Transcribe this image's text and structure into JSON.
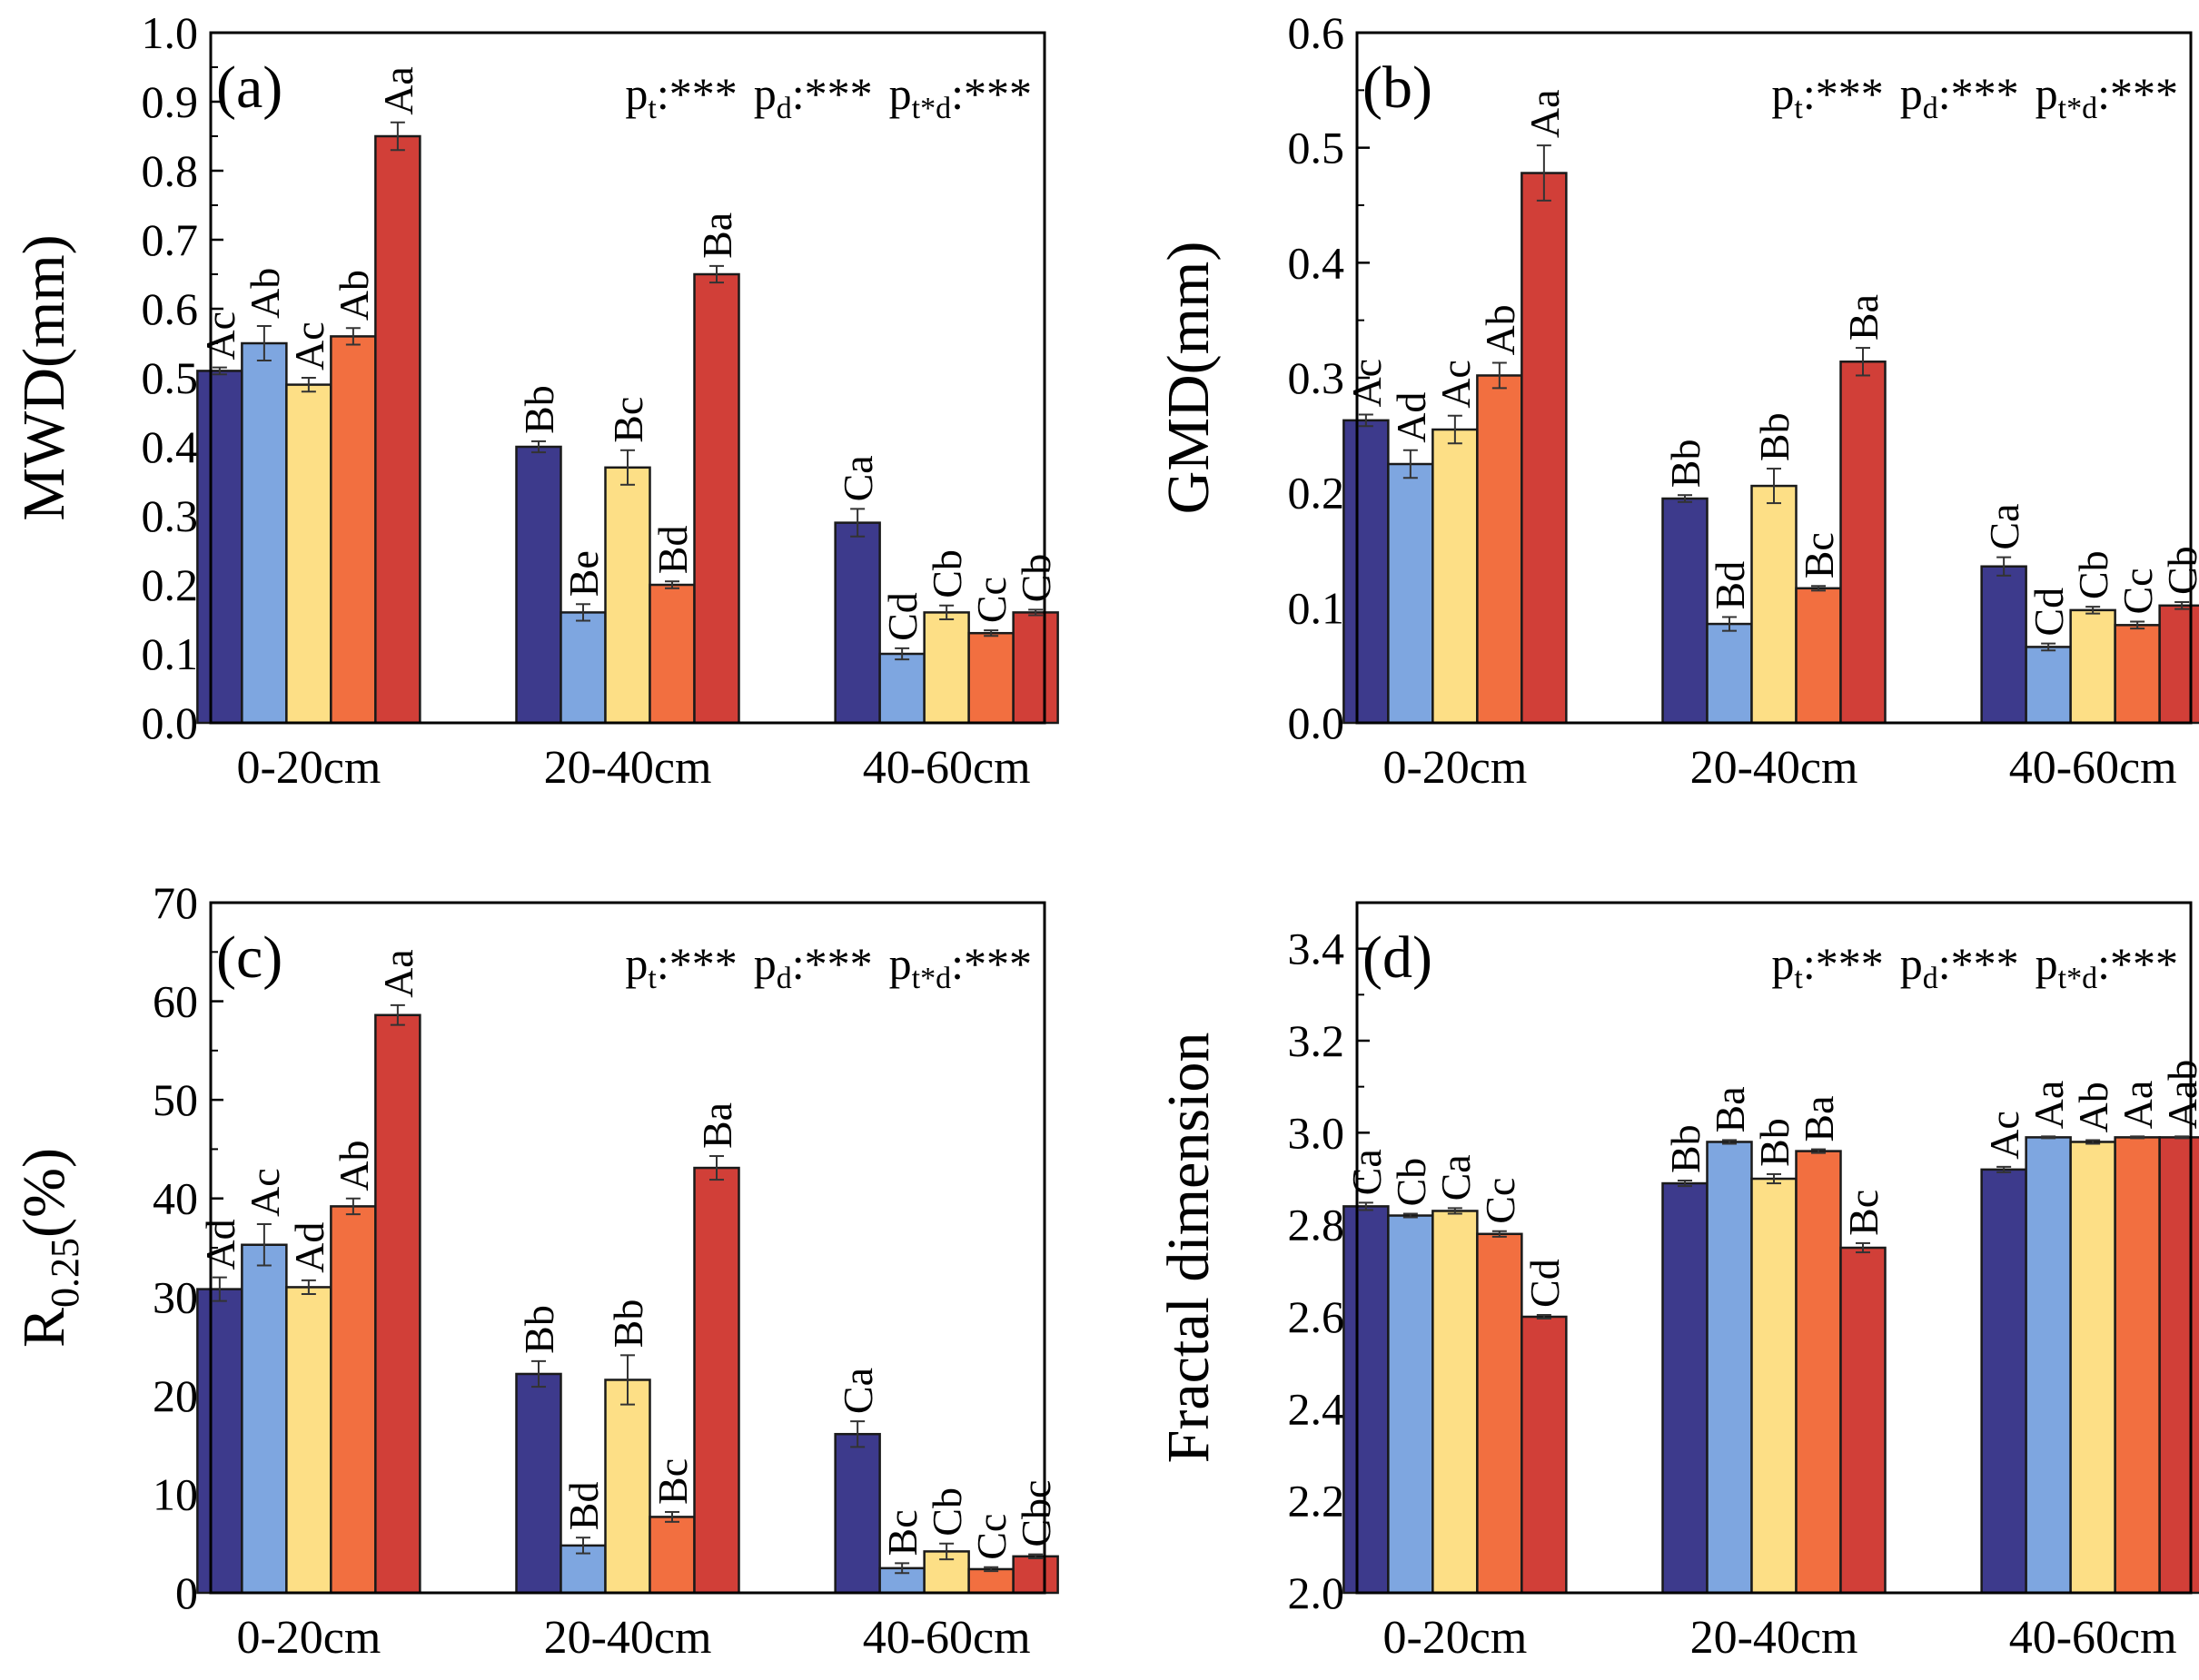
{
  "figure": {
    "colors": [
      "#3d3a8c",
      "#7ea6e0",
      "#fddf86",
      "#f26f40",
      "#d13f38"
    ]
  },
  "chart_data": [
    {
      "type": "bar",
      "panel": "(a)",
      "ylabel_parts": [
        "MWD(mm)",
        "",
        ""
      ],
      "ylim": [
        0,
        1.0
      ],
      "yticks": [
        "0.0",
        "0.1",
        "0.2",
        "0.3",
        "0.4",
        "0.5",
        "0.6",
        "0.7",
        "0.8",
        "0.9",
        "1.0"
      ],
      "categories": [
        "0-20cm",
        "20-40cm",
        "40-60cm"
      ],
      "pvalues": [
        "t",
        "d",
        "t*d"
      ],
      "pstars": ":***",
      "series": [
        {
          "values": [
            0.51,
            0.4,
            0.29
          ],
          "errors": [
            0.005,
            0.008,
            0.02
          ],
          "labels": [
            "Ac",
            "Bb",
            "Ca"
          ]
        },
        {
          "values": [
            0.55,
            0.16,
            0.1
          ],
          "errors": [
            0.025,
            0.012,
            0.008
          ],
          "labels": [
            "Ab",
            "Be",
            "Cd"
          ]
        },
        {
          "values": [
            0.49,
            0.37,
            0.16
          ],
          "errors": [
            0.01,
            0.025,
            0.01
          ],
          "labels": [
            "Ac",
            "Bc",
            "Cb"
          ]
        },
        {
          "values": [
            0.56,
            0.2,
            0.13
          ],
          "errors": [
            0.012,
            0.005,
            0.004
          ],
          "labels": [
            "Ab",
            "Bd",
            "Cc"
          ]
        },
        {
          "values": [
            0.85,
            0.65,
            0.16
          ],
          "errors": [
            0.02,
            0.012,
            0.004
          ],
          "labels": [
            "Aa",
            "Ba",
            "Cb"
          ]
        }
      ]
    },
    {
      "type": "bar",
      "panel": "(b)",
      "ylabel_parts": [
        "GMD(mm)",
        "",
        ""
      ],
      "ylim": [
        0,
        0.6
      ],
      "yticks": [
        "0.0",
        "0.1",
        "0.2",
        "0.3",
        "0.4",
        "0.5",
        "0.6"
      ],
      "categories": [
        "0-20cm",
        "20-40cm",
        "40-60cm"
      ],
      "pvalues": [
        "t",
        "d",
        "t*d"
      ],
      "pstars": ":***",
      "series": [
        {
          "values": [
            0.263,
            0.195,
            0.136
          ],
          "errors": [
            0.005,
            0.003,
            0.008
          ],
          "labels": [
            "Ac",
            "Bb",
            "Ca"
          ]
        },
        {
          "values": [
            0.225,
            0.086,
            0.066
          ],
          "errors": [
            0.012,
            0.006,
            0.003
          ],
          "labels": [
            "Ad",
            "Bd",
            "Cd"
          ]
        },
        {
          "values": [
            0.255,
            0.206,
            0.098
          ],
          "errors": [
            0.012,
            0.015,
            0.003
          ],
          "labels": [
            "Ac",
            "Bb",
            "Cb"
          ]
        },
        {
          "values": [
            0.302,
            0.117,
            0.085
          ],
          "errors": [
            0.011,
            0.002,
            0.003
          ],
          "labels": [
            "Ab",
            "Bc",
            "Cc"
          ]
        },
        {
          "values": [
            0.478,
            0.314,
            0.102
          ],
          "errors": [
            0.024,
            0.012,
            0.003
          ],
          "labels": [
            "Aa",
            "Ba",
            "Cb"
          ]
        }
      ]
    },
    {
      "type": "bar",
      "panel": "(c)",
      "ylabel_parts": [
        "R",
        "0.25",
        "(%)"
      ],
      "ylim": [
        0,
        70
      ],
      "yticks": [
        "0",
        "10",
        "20",
        "30",
        "40",
        "50",
        "60",
        "70"
      ],
      "categories": [
        "0-20cm",
        "20-40cm",
        "40-60cm"
      ],
      "pvalues": [
        "t",
        "d",
        "t*d"
      ],
      "pstars": ":***",
      "series": [
        {
          "values": [
            30.8,
            22.2,
            16.1
          ],
          "errors": [
            1.2,
            1.3,
            1.3
          ],
          "labels": [
            "Ad",
            "Bb",
            "Ca"
          ]
        },
        {
          "values": [
            35.3,
            4.8,
            2.5
          ],
          "errors": [
            2.1,
            0.8,
            0.5
          ],
          "labels": [
            "Ac",
            "Bd",
            "Bc"
          ]
        },
        {
          "values": [
            31.0,
            21.6,
            4.2
          ],
          "errors": [
            0.7,
            2.5,
            0.8
          ],
          "labels": [
            "Ad",
            "Bb",
            "Cb"
          ]
        },
        {
          "values": [
            39.2,
            7.7,
            2.4
          ],
          "errors": [
            0.8,
            0.5,
            0.2
          ],
          "labels": [
            "Ab",
            "Bc",
            "Cc"
          ]
        },
        {
          "values": [
            58.6,
            43.1,
            3.7
          ],
          "errors": [
            1.0,
            1.2,
            0.2
          ],
          "labels": [
            "Aa",
            "Ba",
            "Cbc"
          ]
        }
      ]
    },
    {
      "type": "bar",
      "panel": "(d)",
      "ylabel_parts": [
        "Fractal dimension",
        "",
        ""
      ],
      "ylim": [
        2.0,
        3.5
      ],
      "yticks": [
        "2.0",
        "2.2",
        "2.4",
        "2.6",
        "2.8",
        "3.0",
        "3.2",
        "3.4"
      ],
      "categories": [
        "0-20cm",
        "20-40cm",
        "40-60cm"
      ],
      "pvalues": [
        "t",
        "d",
        "t*d"
      ],
      "pstars": ":***",
      "series": [
        {
          "values": [
            2.84,
            2.89,
            2.92
          ],
          "errors": [
            0.008,
            0.006,
            0.006
          ],
          "labels": [
            "Ca",
            "Bb",
            "Ac"
          ]
        },
        {
          "values": [
            2.82,
            2.98,
            2.99
          ],
          "errors": [
            0.004,
            0.004,
            0.002
          ],
          "labels": [
            "Cb",
            "Ba",
            "Aa"
          ]
        },
        {
          "values": [
            2.83,
            2.9,
            2.98
          ],
          "errors": [
            0.006,
            0.01,
            0.004
          ],
          "labels": [
            "Ca",
            "Bb",
            "Ab"
          ]
        },
        {
          "values": [
            2.78,
            2.96,
            2.99
          ],
          "errors": [
            0.006,
            0.004,
            0.002
          ],
          "labels": [
            "Cc",
            "Ba",
            "Aa"
          ]
        },
        {
          "values": [
            2.6,
            2.75,
            2.99
          ],
          "errors": [
            0.004,
            0.01,
            0.002
          ],
          "labels": [
            "Cd",
            "Bc",
            "Aab"
          ]
        }
      ]
    }
  ]
}
